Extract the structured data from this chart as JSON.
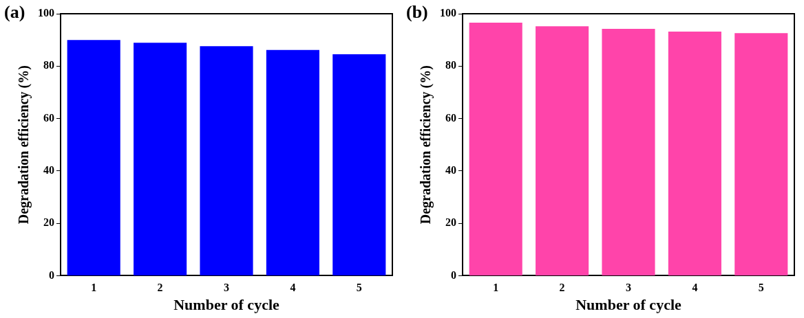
{
  "chart_data": [
    {
      "type": "bar",
      "annotations": [
        "(a)"
      ],
      "xlabel": "Number of cycle",
      "ylabel": "Degradation efficiency (%)",
      "categories": [
        "1",
        "2",
        "3",
        "4",
        "5"
      ],
      "values": [
        90.0,
        88.9,
        87.6,
        86.2,
        84.5
      ],
      "color": "#0000ff",
      "ylim": [
        0,
        100
      ],
      "yticks": [
        0,
        20,
        40,
        60,
        80,
        100
      ],
      "grid": false,
      "legend": false
    },
    {
      "type": "bar",
      "annotations": [
        "(b)"
      ],
      "xlabel": "Number of cycle",
      "ylabel": "Degradation efficiency (%)",
      "categories": [
        "1",
        "2",
        "3",
        "4",
        "5"
      ],
      "values": [
        96.6,
        95.2,
        94.2,
        93.2,
        92.6
      ],
      "color": "#ff44aa",
      "ylim": [
        0,
        100
      ],
      "yticks": [
        0,
        20,
        40,
        60,
        80,
        100
      ],
      "grid": false,
      "legend": false
    }
  ]
}
